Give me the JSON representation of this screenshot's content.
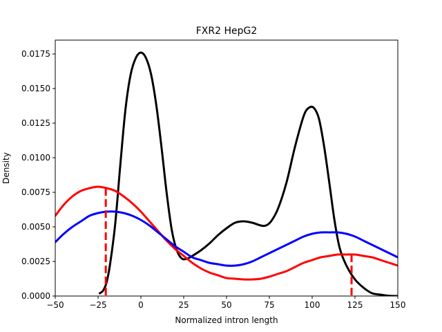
{
  "chart_data": {
    "type": "line",
    "title": "FXR2 HepG2",
    "xlabel": "Normalized intron length",
    "ylabel": "Density",
    "xlim": [
      -50,
      150
    ],
    "ylim": [
      0,
      0.0185
    ],
    "grid": false,
    "legend": "none",
    "x_ticks": [
      -50,
      -25,
      0,
      25,
      50,
      75,
      100,
      125,
      150
    ],
    "x_tick_labels": [
      "−50",
      "−25",
      "0",
      "25",
      "50",
      "75",
      "100",
      "125",
      "150"
    ],
    "y_ticks": [
      0,
      0.0025,
      0.005,
      0.0075,
      0.01,
      0.0125,
      0.015,
      0.0175
    ],
    "y_tick_labels": [
      "0.0000",
      "0.0025",
      "0.0050",
      "0.0075",
      "0.0100",
      "0.0125",
      "0.0150",
      "0.0175"
    ],
    "series": [
      {
        "color": "#000000",
        "points": [
          [
            -24,
            0.0002
          ],
          [
            -22,
            0.0004
          ],
          [
            -20,
            0.001
          ],
          [
            -18,
            0.0023
          ],
          [
            -15,
            0.0052
          ],
          [
            -12,
            0.0095
          ],
          [
            -9,
            0.0135
          ],
          [
            -6,
            0.016
          ],
          [
            -3,
            0.0172
          ],
          [
            0,
            0.0176
          ],
          [
            3,
            0.0172
          ],
          [
            6,
            0.016
          ],
          [
            9,
            0.0138
          ],
          [
            12,
            0.0108
          ],
          [
            15,
            0.0075
          ],
          [
            18,
            0.0048
          ],
          [
            21,
            0.0033
          ],
          [
            24,
            0.0027
          ],
          [
            27,
            0.0027
          ],
          [
            30,
            0.0029
          ],
          [
            35,
            0.0033
          ],
          [
            40,
            0.0038
          ],
          [
            45,
            0.0044
          ],
          [
            50,
            0.0049
          ],
          [
            55,
            0.0053
          ],
          [
            60,
            0.0054
          ],
          [
            65,
            0.0053
          ],
          [
            70,
            0.0051
          ],
          [
            73,
            0.0051
          ],
          [
            76,
            0.0054
          ],
          [
            80,
            0.0063
          ],
          [
            85,
            0.0082
          ],
          [
            90,
            0.0108
          ],
          [
            95,
            0.013
          ],
          [
            98,
            0.0136
          ],
          [
            101,
            0.0136
          ],
          [
            104,
            0.0128
          ],
          [
            107,
            0.0108
          ],
          [
            110,
            0.0082
          ],
          [
            113,
            0.0055
          ],
          [
            116,
            0.0035
          ],
          [
            120,
            0.0022
          ],
          [
            125,
            0.0012
          ],
          [
            130,
            0.0006
          ],
          [
            135,
            0.0002
          ],
          [
            140,
            0.0001
          ],
          [
            145,
            2e-05
          ],
          [
            150,
            0.0
          ]
        ]
      },
      {
        "color": "#ff0000",
        "points": [
          [
            -50,
            0.0058
          ],
          [
            -45,
            0.0066
          ],
          [
            -40,
            0.0072
          ],
          [
            -35,
            0.0076
          ],
          [
            -30,
            0.0078
          ],
          [
            -25,
            0.0079
          ],
          [
            -20,
            0.0078
          ],
          [
            -15,
            0.0076
          ],
          [
            -10,
            0.0072
          ],
          [
            -5,
            0.0067
          ],
          [
            0,
            0.0061
          ],
          [
            5,
            0.0054
          ],
          [
            10,
            0.0047
          ],
          [
            15,
            0.004
          ],
          [
            20,
            0.0034
          ],
          [
            25,
            0.0029
          ],
          [
            30,
            0.0024
          ],
          [
            35,
            0.002
          ],
          [
            40,
            0.0017
          ],
          [
            45,
            0.0015
          ],
          [
            50,
            0.0013
          ],
          [
            55,
            0.00125
          ],
          [
            60,
            0.0012
          ],
          [
            65,
            0.0012
          ],
          [
            70,
            0.00125
          ],
          [
            75,
            0.0014
          ],
          [
            80,
            0.0016
          ],
          [
            85,
            0.0018
          ],
          [
            90,
            0.0021
          ],
          [
            95,
            0.0024
          ],
          [
            100,
            0.0026
          ],
          [
            105,
            0.0028
          ],
          [
            110,
            0.0029
          ],
          [
            115,
            0.003
          ],
          [
            120,
            0.003
          ],
          [
            125,
            0.003
          ],
          [
            130,
            0.0029
          ],
          [
            135,
            0.0028
          ],
          [
            140,
            0.0026
          ],
          [
            145,
            0.0024
          ],
          [
            150,
            0.0022
          ]
        ]
      },
      {
        "color": "#0000ff",
        "points": [
          [
            -50,
            0.0039
          ],
          [
            -45,
            0.0045
          ],
          [
            -40,
            0.005
          ],
          [
            -35,
            0.0054
          ],
          [
            -30,
            0.0058
          ],
          [
            -25,
            0.006
          ],
          [
            -20,
            0.0061
          ],
          [
            -15,
            0.0061
          ],
          [
            -10,
            0.006
          ],
          [
            -5,
            0.0058
          ],
          [
            0,
            0.0055
          ],
          [
            5,
            0.0051
          ],
          [
            10,
            0.0046
          ],
          [
            15,
            0.0041
          ],
          [
            20,
            0.0036
          ],
          [
            25,
            0.0032
          ],
          [
            30,
            0.0028
          ],
          [
            35,
            0.0026
          ],
          [
            40,
            0.0024
          ],
          [
            45,
            0.0023
          ],
          [
            50,
            0.0022
          ],
          [
            55,
            0.0022
          ],
          [
            60,
            0.0023
          ],
          [
            65,
            0.0025
          ],
          [
            70,
            0.0028
          ],
          [
            75,
            0.0031
          ],
          [
            80,
            0.0034
          ],
          [
            85,
            0.0037
          ],
          [
            90,
            0.004
          ],
          [
            95,
            0.0043
          ],
          [
            100,
            0.0045
          ],
          [
            105,
            0.0046
          ],
          [
            110,
            0.0046
          ],
          [
            115,
            0.0046
          ],
          [
            120,
            0.0045
          ],
          [
            125,
            0.0043
          ],
          [
            130,
            0.004
          ],
          [
            135,
            0.0037
          ],
          [
            140,
            0.0034
          ],
          [
            145,
            0.0031
          ],
          [
            150,
            0.0028
          ]
        ]
      }
    ],
    "vlines": [
      {
        "x": -20.5,
        "y": 0.0078,
        "color": "#ff0000",
        "style": "dashed"
      },
      {
        "x": 123,
        "y": 0.003,
        "color": "#ff0000",
        "style": "dashed"
      }
    ]
  }
}
